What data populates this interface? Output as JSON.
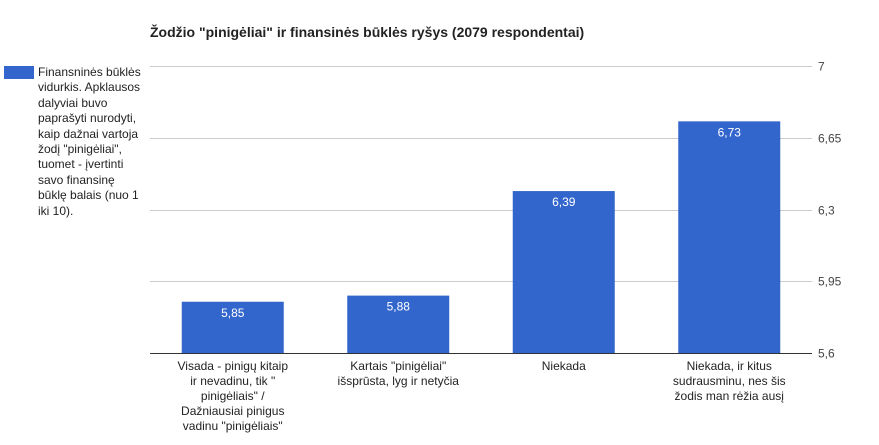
{
  "chart_data": {
    "type": "bar",
    "title": "Žodžio \"pinigėliai\" ir finansinės būklės ryšys (2079 respondentai)",
    "categories": [
      "Visada - pinigų kitaip ir nevadinu, tik \" pinigėliais\" / Dažniausiai pinigus vadinu \"pinigėliais\"",
      "Kartais \"pinigėliai\" išsprūsta, lyg ir netyčia",
      "Niekada",
      "Niekada, ir kitus sudrausminu, nes šis žodis man rėžia ausį"
    ],
    "series": [
      {
        "name": "Finansninės būklės vidurkis. Apklausos dalyviai buvo paprašyti nurodyti, kaip dažnai vartoja žodį \"pinigėliai\", tuomet - įvertinti savo finansinę būklę balais (nuo 1 iki 10).",
        "values": [
          5.85,
          5.88,
          6.39,
          6.73
        ],
        "data_labels": [
          "5,85",
          "5,88",
          "6,39",
          "6,73"
        ],
        "color": "#3366cc"
      }
    ],
    "y_ticks": [
      "7",
      "6,65",
      "6,3",
      "5,95",
      "5,6"
    ],
    "ylim": [
      5.6,
      7
    ],
    "y_axis_side": "right",
    "legend_position": "left",
    "grid": true,
    "xlabel": "",
    "ylabel": ""
  }
}
